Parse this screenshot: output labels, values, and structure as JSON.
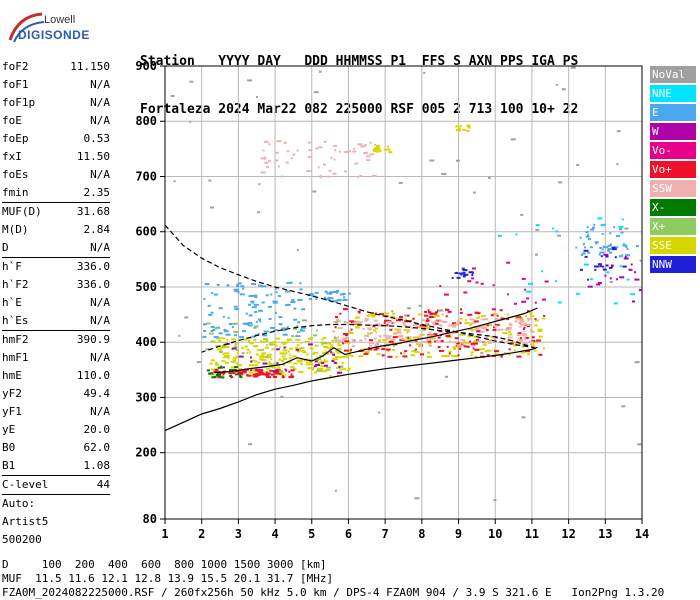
{
  "logo": {
    "brand_top": "Lowell",
    "brand_bottom": "DIGISONDE"
  },
  "header": {
    "line1": "Station   YYYY DAY   DDD HHMMSS P1  FFS S AXN PPS IGA PS",
    "line2": "Fortaleza 2024 Mar22 082 225000 RSF 005 2 713 100 10+ 22"
  },
  "params": {
    "group1": [
      {
        "key": "foF2",
        "value": "11.150"
      },
      {
        "key": "foF1",
        "value": "N/A"
      },
      {
        "key": "foF1p",
        "value": "N/A"
      },
      {
        "key": "foE",
        "value": "N/A"
      },
      {
        "key": "foEp",
        "value": "0.53"
      },
      {
        "key": "fxI",
        "value": "11.50"
      },
      {
        "key": "foEs",
        "value": "N/A"
      },
      {
        "key": "fmin",
        "value": "2.35"
      }
    ],
    "group2": [
      {
        "key": "MUF(D)",
        "value": "31.68"
      },
      {
        "key": "M(D)",
        "value": "2.84"
      },
      {
        "key": "D",
        "value": "N/A"
      }
    ],
    "group3": [
      {
        "key": "h`F",
        "value": "336.0"
      },
      {
        "key": "h`F2",
        "value": "336.0"
      },
      {
        "key": "h`E",
        "value": "N/A"
      },
      {
        "key": "h`Es",
        "value": "N/A"
      }
    ],
    "group4": [
      {
        "key": "hmF2",
        "value": "390.9"
      },
      {
        "key": "hmF1",
        "value": "N/A"
      },
      {
        "key": "hmE",
        "value": "110.0"
      },
      {
        "key": "yF2",
        "value": "49.4"
      },
      {
        "key": "yF1",
        "value": "N/A"
      },
      {
        "key": "yE",
        "value": "20.0"
      },
      {
        "key": "B0",
        "value": "62.0"
      },
      {
        "key": "B1",
        "value": "1.08"
      }
    ],
    "group5": [
      {
        "key": "C-level",
        "value": "44"
      }
    ],
    "auto": [
      "Auto:",
      "Artist5",
      "500200"
    ]
  },
  "legend": [
    {
      "label": "NoVal",
      "color": "#a0a0a0"
    },
    {
      "label": "NNE",
      "color": "#00e5ff"
    },
    {
      "label": "E",
      "color": "#4aa8f0"
    },
    {
      "label": "W",
      "color": "#b000a8"
    },
    {
      "label": "Vo-",
      "color": "#e8008a"
    },
    {
      "label": "Vo+",
      "color": "#f0102a"
    },
    {
      "label": "SSW",
      "color": "#f0b0b0"
    },
    {
      "label": "X-",
      "color": "#007a00"
    },
    {
      "label": "X+",
      "color": "#8fcc60"
    },
    {
      "label": "SSE",
      "color": "#d6d600"
    },
    {
      "label": "NNW",
      "color": "#2020d8"
    }
  ],
  "footer": {
    "line1": "D     100  200  400  600  800 1000 1500 3000 [km]",
    "line2": "MUF  11.5 11.6 12.1 12.8 13.9 15.5 20.1 31.7 [MHz]",
    "line3": "FZA0M_2024082225000.RSF / 260fx256h 50 kHz 5.0 km / DPS-4 FZA0M 904 / 3.9 S 321.6 E   Ion2Png 1.3.20"
  },
  "chart_data": {
    "type": "scatter",
    "x_ticks": [
      1,
      2,
      3,
      4,
      5,
      6,
      7,
      8,
      9,
      10,
      11,
      12,
      13,
      14
    ],
    "y_ticks": [
      80,
      200,
      300,
      400,
      500,
      600,
      700,
      800,
      900
    ],
    "xlim": [
      1,
      14
    ],
    "ylim": [
      80,
      900
    ],
    "grid": true,
    "legend_placement": "right",
    "es_o_trace": [
      [
        2.3,
        340
      ],
      [
        2.8,
        342
      ],
      [
        3.2,
        345
      ],
      [
        3.6,
        348
      ],
      [
        4.0,
        350
      ],
      [
        4.4,
        362
      ],
      [
        4.8,
        362
      ],
      [
        5.2,
        368
      ],
      [
        5.6,
        370
      ],
      [
        6.0,
        375
      ],
      [
        6.5,
        383
      ],
      [
        7.0,
        390
      ],
      [
        7.5,
        398
      ],
      [
        8.0,
        405
      ],
      [
        8.5,
        410
      ],
      [
        9.0,
        420
      ],
      [
        9.5,
        428
      ],
      [
        10.0,
        438
      ],
      [
        10.5,
        448
      ],
      [
        11.0,
        460
      ],
      [
        11.15,
        465
      ]
    ],
    "f_trace_measured": [
      [
        2.35,
        345
      ],
      [
        2.8,
        347
      ],
      [
        3.3,
        352
      ],
      [
        3.8,
        356
      ],
      [
        4.2,
        360
      ],
      [
        4.6,
        372
      ],
      [
        5.0,
        366
      ],
      [
        5.3,
        375
      ],
      [
        5.6,
        390
      ],
      [
        5.9,
        378
      ],
      [
        6.3,
        384
      ],
      [
        6.8,
        392
      ],
      [
        7.3,
        397
      ],
      [
        7.8,
        404
      ],
      [
        8.3,
        410
      ],
      [
        8.8,
        418
      ],
      [
        9.3,
        425
      ],
      [
        9.8,
        434
      ],
      [
        10.3,
        443
      ],
      [
        10.8,
        452
      ],
      [
        11.15,
        462
      ]
    ],
    "true_height_profile": [
      [
        1.0,
        240
      ],
      [
        1.5,
        255
      ],
      [
        2.0,
        270
      ],
      [
        2.5,
        280
      ],
      [
        3.0,
        292
      ],
      [
        3.5,
        305
      ],
      [
        4.0,
        315
      ],
      [
        4.5,
        322
      ],
      [
        5.0,
        330
      ],
      [
        5.5,
        336
      ],
      [
        6.0,
        342
      ],
      [
        6.5,
        347
      ],
      [
        7.0,
        352
      ],
      [
        7.5,
        356
      ],
      [
        8.0,
        360
      ],
      [
        8.5,
        364
      ],
      [
        9.0,
        368
      ],
      [
        9.5,
        372
      ],
      [
        10.0,
        376
      ],
      [
        10.5,
        381
      ],
      [
        11.0,
        387
      ],
      [
        11.15,
        391
      ]
    ],
    "model_curve_dashed": [
      [
        1.0,
        612
      ],
      [
        1.5,
        575
      ],
      [
        2.0,
        552
      ],
      [
        2.5,
        535
      ],
      [
        3.0,
        522
      ],
      [
        3.5,
        510
      ],
      [
        4.0,
        500
      ],
      [
        4.5,
        492
      ],
      [
        5.0,
        484
      ],
      [
        5.5,
        475
      ],
      [
        6.0,
        465
      ],
      [
        6.5,
        455
      ],
      [
        7.0,
        447
      ],
      [
        7.5,
        440
      ],
      [
        8.0,
        432
      ],
      [
        8.5,
        425
      ],
      [
        9.0,
        418
      ],
      [
        9.5,
        410
      ],
      [
        10.0,
        402
      ],
      [
        10.5,
        396
      ],
      [
        11.0,
        391
      ],
      [
        11.15,
        388
      ],
      [
        10.5,
        402
      ],
      [
        10.0,
        410
      ],
      [
        9.5,
        414
      ],
      [
        9.0,
        418
      ],
      [
        8.5,
        421
      ],
      [
        8.0,
        425
      ],
      [
        7.5,
        428
      ],
      [
        7.0,
        430
      ],
      [
        6.5,
        431
      ],
      [
        6.0,
        432
      ],
      [
        5.5,
        432
      ],
      [
        5.0,
        430
      ],
      [
        4.5,
        426
      ],
      [
        4.0,
        420
      ],
      [
        3.5,
        412
      ],
      [
        3.0,
        403
      ],
      [
        2.5,
        393
      ],
      [
        2.0,
        382
      ]
    ],
    "echo_clusters": [
      {
        "color": "#d6d600",
        "x_range": [
          2.2,
          6.0
        ],
        "y_range": [
          340,
          410
        ],
        "count": 260
      },
      {
        "color": "#d6d600",
        "x_range": [
          6.0,
          11.3
        ],
        "y_range": [
          375,
          455
        ],
        "count": 180
      },
      {
        "color": "#f0102a",
        "x_range": [
          2.3,
          4.5
        ],
        "y_range": [
          338,
          352
        ],
        "count": 70
      },
      {
        "color": "#f0102a",
        "x_range": [
          5.6,
          11.2
        ],
        "y_range": [
          375,
          462
        ],
        "count": 160
      },
      {
        "color": "#f0b0b0",
        "x_range": [
          5.5,
          11.0
        ],
        "y_range": [
          395,
          445
        ],
        "count": 180
      },
      {
        "color": "#4aa8f0",
        "x_range": [
          2.0,
          4.8
        ],
        "y_range": [
          410,
          510
        ],
        "count": 110
      },
      {
        "color": "#4aa8f0",
        "x_range": [
          4.8,
          6.0
        ],
        "y_range": [
          475,
          495
        ],
        "count": 30
      },
      {
        "color": "#4aa8f0",
        "x_range": [
          12.3,
          14.0
        ],
        "y_range": [
          555,
          615
        ],
        "count": 40
      },
      {
        "color": "#f0b0b0",
        "x_range": [
          3.5,
          6.8
        ],
        "y_range": [
          700,
          770
        ],
        "count": 60
      },
      {
        "color": "#d6d600",
        "x_range": [
          6.6,
          7.1
        ],
        "y_range": [
          745,
          760
        ],
        "count": 16
      },
      {
        "color": "#d6d600",
        "x_range": [
          8.9,
          9.3
        ],
        "y_range": [
          783,
          795
        ],
        "count": 10
      },
      {
        "color": "#007a00",
        "x_range": [
          2.1,
          3.2
        ],
        "y_range": [
          335,
          360
        ],
        "count": 20
      },
      {
        "color": "#8fcc60",
        "x_range": [
          2.0,
          6.0
        ],
        "y_range": [
          345,
          440
        ],
        "count": 40
      },
      {
        "color": "#b000a8",
        "x_range": [
          2.5,
          5.8
        ],
        "y_range": [
          345,
          400
        ],
        "count": 25
      },
      {
        "color": "#2020d8",
        "x_range": [
          8.8,
          9.4
        ],
        "y_range": [
          518,
          535
        ],
        "count": 14
      },
      {
        "color": "#2020d8",
        "x_range": [
          12.2,
          13.6
        ],
        "y_range": [
          530,
          575
        ],
        "count": 18
      },
      {
        "color": "#b000a8",
        "x_range": [
          12.5,
          14.0
        ],
        "y_range": [
          470,
          560
        ],
        "count": 18
      },
      {
        "color": "#00e5ff",
        "x_range": [
          10.0,
          13.8
        ],
        "y_range": [
          450,
          640
        ],
        "count": 25
      },
      {
        "color": "#e8008a",
        "x_range": [
          8.0,
          11.5
        ],
        "y_range": [
          420,
          560
        ],
        "count": 25
      },
      {
        "color": "#a0a0a0",
        "x_range": [
          1.0,
          14.0
        ],
        "y_range": [
          100,
          900
        ],
        "count": 60
      }
    ]
  }
}
